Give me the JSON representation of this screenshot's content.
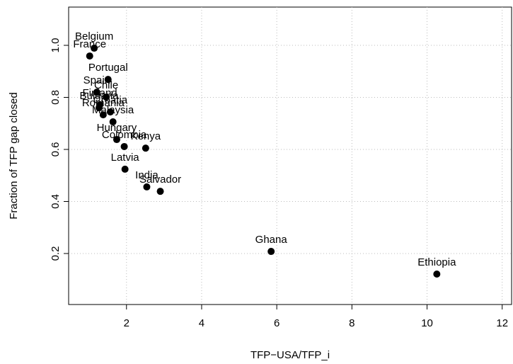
{
  "chart_data": {
    "type": "scatter",
    "xlabel": "TFP−USA/TFP_i",
    "ylabel": "Fraction of TFP gap closed",
    "labels": [
      "Belgium",
      "France",
      "Portugal",
      "Spain",
      "Chile",
      "Finland",
      "Bulgaria",
      "Croatia",
      "Romania",
      "Malaysia",
      "Hungary",
      "Colombia",
      "Kenya",
      "Latvia",
      "India",
      "Salvador",
      "Ghana",
      "Ethiopia"
    ],
    "x": [
      1.14,
      1.02,
      1.51,
      1.21,
      1.46,
      1.29,
      1.27,
      1.57,
      1.38,
      1.64,
      1.74,
      1.94,
      2.51,
      1.96,
      2.54,
      2.9,
      5.85,
      10.26
    ],
    "values": [
      0.989,
      0.959,
      0.869,
      0.82,
      0.801,
      0.771,
      0.76,
      0.744,
      0.733,
      0.706,
      0.638,
      0.611,
      0.605,
      0.524,
      0.456,
      0.439,
      0.208,
      0.121
    ],
    "color": "#000000",
    "xlim": [
      0.46,
      12.25
    ],
    "ylim": [
      0.004,
      1.147
    ],
    "xticks": [
      2,
      4,
      6,
      8,
      10,
      12
    ],
    "yticks": [
      0.2,
      0.4,
      0.6,
      0.8,
      {
        "value": 1,
        "label": "1.0"
      }
    ],
    "grid": true
  }
}
